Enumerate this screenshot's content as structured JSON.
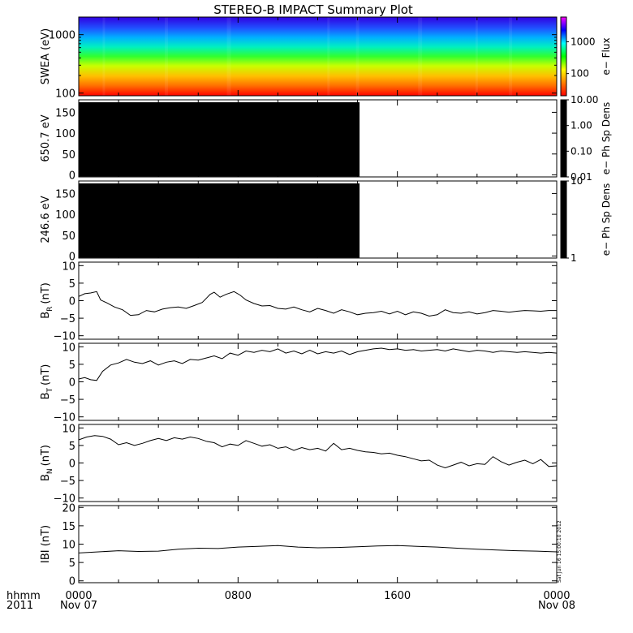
{
  "title": "STEREO-B IMPACT Summary Plot",
  "footer": {
    "hhmm_label": "hhmm",
    "year_label": "2011",
    "x_ticks": [
      {
        "hour": 0,
        "time": "0000",
        "date": "Nov 07"
      },
      {
        "hour": 8,
        "time": "0800",
        "date": ""
      },
      {
        "hour": 16,
        "time": "1600",
        "date": ""
      },
      {
        "hour": 24,
        "time": "0000",
        "date": "Nov 08"
      }
    ]
  },
  "timestamp": "Sat Jun 16 15:00:10 2012",
  "colors": {
    "colorbar_spectrum": [
      "#ff0000",
      "#ff8000",
      "#ffff00",
      "#00ff00",
      "#00ffff",
      "#0000ff",
      "#ff00ff"
    ],
    "black": "#000000"
  },
  "chart_data": [
    {
      "type": "heatmap",
      "name": "swea",
      "ylabel": "SWEA (eV)",
      "yscale": "log",
      "ylim": [
        90,
        2000
      ],
      "yticks": [
        {
          "v": 100,
          "label": "100"
        },
        {
          "v": 1000,
          "label": "1000"
        }
      ],
      "xlim": [
        0,
        24
      ],
      "colorbar": {
        "label": "e− Flux",
        "scale": "log",
        "ticks": [
          {
            "v": 100,
            "label": "100"
          },
          {
            "v": 1000,
            "label": "1000"
          }
        ],
        "range": [
          20,
          6000
        ]
      }
    },
    {
      "type": "heatmap",
      "name": "pad650",
      "ylabel": "650.7 eV",
      "ylim": [
        -5,
        180
      ],
      "yticks": [
        {
          "v": 0,
          "label": "0"
        },
        {
          "v": 50,
          "label": "50"
        },
        {
          "v": 100,
          "label": "100"
        },
        {
          "v": 150,
          "label": "150"
        }
      ],
      "xlim": [
        0,
        24
      ],
      "data_coverage_hours": [
        0,
        14.1
      ],
      "colorbar": {
        "label": "e− Ph Sp Dens",
        "scale": "log",
        "range": [
          0.01,
          10
        ],
        "ticks": [
          {
            "v": 0.01,
            "label": "0.01"
          },
          {
            "v": 0.1,
            "label": "0.10"
          },
          {
            "v": 1,
            "label": "1.00"
          },
          {
            "v": 10,
            "label": "10.00"
          }
        ]
      }
    },
    {
      "type": "heatmap",
      "name": "pad246",
      "ylabel": "246.6 eV",
      "ylim": [
        -5,
        180
      ],
      "yticks": [
        {
          "v": 0,
          "label": "0"
        },
        {
          "v": 50,
          "label": "50"
        },
        {
          "v": 100,
          "label": "100"
        },
        {
          "v": 150,
          "label": "150"
        }
      ],
      "xlim": [
        0,
        24
      ],
      "data_coverage_hours": [
        0,
        14.1
      ],
      "colorbar": {
        "label": "e− Ph Sp Dens",
        "scale": "log",
        "range": [
          1,
          10
        ],
        "ticks": [
          {
            "v": 1,
            "label": "1"
          },
          {
            "v": 10,
            "label": "10"
          }
        ]
      }
    },
    {
      "type": "line",
      "name": "br",
      "ylabel": "B",
      "ylabel_sub": "R",
      "ylabel_unit": "(nT)",
      "ylim": [
        -11,
        11
      ],
      "yticks": [
        {
          "v": -10,
          "label": "−10"
        },
        {
          "v": -5,
          "label": "−5"
        },
        {
          "v": 0,
          "label": "0"
        },
        {
          "v": 5,
          "label": "5"
        },
        {
          "v": 10,
          "label": "10"
        }
      ],
      "xlim": [
        0,
        24
      ],
      "x": [
        0,
        0.3,
        0.6,
        0.9,
        1.1,
        1.4,
        1.8,
        2.2,
        2.6,
        3.0,
        3.4,
        3.8,
        4.2,
        4.6,
        5.0,
        5.4,
        5.8,
        6.2,
        6.6,
        6.8,
        7.1,
        7.4,
        7.8,
        8.1,
        8.4,
        8.8,
        9.2,
        9.6,
        10.0,
        10.4,
        10.8,
        11.2,
        11.6,
        12.0,
        12.4,
        12.8,
        13.2,
        13.6,
        14.0,
        14.4,
        14.8,
        15.2,
        15.6,
        16.0,
        16.4,
        16.8,
        17.2,
        17.6,
        18.0,
        18.4,
        18.8,
        19.2,
        19.6,
        20.0,
        20.4,
        20.8,
        21.2,
        21.6,
        22.0,
        22.4,
        22.8,
        23.2,
        23.6,
        24.0
      ],
      "y": [
        1.2,
        2.0,
        2.2,
        2.6,
        0.2,
        -0.6,
        -1.8,
        -2.6,
        -4.2,
        -4.0,
        -2.8,
        -3.2,
        -2.4,
        -2.0,
        -1.8,
        -2.2,
        -1.4,
        -0.5,
        1.8,
        2.4,
        1.0,
        1.8,
        2.6,
        1.6,
        0.2,
        -0.8,
        -1.5,
        -1.4,
        -2.2,
        -2.4,
        -1.8,
        -2.6,
        -3.2,
        -2.2,
        -2.8,
        -3.6,
        -2.6,
        -3.2,
        -4.0,
        -3.6,
        -3.4,
        -3.0,
        -3.8,
        -3.0,
        -4.0,
        -3.2,
        -3.6,
        -4.4,
        -4.0,
        -2.6,
        -3.4,
        -3.6,
        -3.2,
        -3.8,
        -3.4,
        -2.8,
        -3.0,
        -3.3,
        -3.0,
        -2.8,
        -2.9,
        -3.0,
        -2.8,
        -2.8
      ]
    },
    {
      "type": "line",
      "name": "bt",
      "ylabel": "B",
      "ylabel_sub": "T",
      "ylabel_unit": "(nT)",
      "ylim": [
        -11,
        11
      ],
      "yticks": [
        {
          "v": -10,
          "label": "−10"
        },
        {
          "v": -5,
          "label": "−5"
        },
        {
          "v": 0,
          "label": "0"
        },
        {
          "v": 5,
          "label": "5"
        },
        {
          "v": 10,
          "label": "10"
        }
      ],
      "xlim": [
        0,
        24
      ],
      "x": [
        0,
        0.3,
        0.6,
        0.9,
        1.2,
        1.6,
        2.0,
        2.4,
        2.8,
        3.2,
        3.6,
        4.0,
        4.4,
        4.8,
        5.2,
        5.6,
        6.0,
        6.4,
        6.8,
        7.2,
        7.6,
        8.0,
        8.4,
        8.8,
        9.2,
        9.6,
        10.0,
        10.4,
        10.8,
        11.2,
        11.6,
        12.0,
        12.4,
        12.8,
        13.2,
        13.6,
        14.0,
        14.4,
        14.8,
        15.2,
        15.6,
        16.0,
        16.4,
        16.8,
        17.2,
        17.6,
        18.0,
        18.4,
        18.8,
        19.2,
        19.6,
        20.0,
        20.4,
        20.8,
        21.2,
        21.6,
        22.0,
        22.4,
        22.8,
        23.2,
        23.6,
        24.0
      ],
      "y": [
        0.8,
        1.2,
        0.6,
        0.4,
        3.0,
        4.8,
        5.4,
        6.4,
        5.6,
        5.2,
        6.0,
        4.8,
        5.6,
        6.0,
        5.2,
        6.4,
        6.2,
        6.8,
        7.4,
        6.6,
        8.2,
        7.6,
        8.8,
        8.4,
        9.0,
        8.6,
        9.4,
        8.2,
        8.8,
        8.0,
        9.0,
        8.0,
        8.6,
        8.2,
        8.8,
        7.8,
        8.6,
        9.0,
        9.4,
        9.6,
        9.2,
        9.4,
        9.0,
        9.2,
        8.8,
        9.0,
        9.2,
        8.8,
        9.4,
        9.0,
        8.6,
        9.0,
        8.8,
        8.4,
        8.8,
        8.6,
        8.4,
        8.6,
        8.4,
        8.2,
        8.4,
        8.2
      ]
    },
    {
      "type": "line",
      "name": "bn",
      "ylabel": "B",
      "ylabel_sub": "N",
      "ylabel_unit": "(nT)",
      "ylim": [
        -11,
        11
      ],
      "yticks": [
        {
          "v": -10,
          "label": "−10"
        },
        {
          "v": -5,
          "label": "−5"
        },
        {
          "v": 0,
          "label": "0"
        },
        {
          "v": 5,
          "label": "5"
        },
        {
          "v": 10,
          "label": "10"
        }
      ],
      "xlim": [
        0,
        24
      ],
      "x": [
        0,
        0.4,
        0.8,
        1.2,
        1.6,
        2.0,
        2.4,
        2.8,
        3.2,
        3.6,
        4.0,
        4.4,
        4.8,
        5.2,
        5.6,
        6.0,
        6.4,
        6.8,
        7.2,
        7.6,
        8.0,
        8.4,
        8.8,
        9.2,
        9.6,
        10.0,
        10.4,
        10.8,
        11.2,
        11.6,
        12.0,
        12.4,
        12.8,
        13.2,
        13.6,
        14.0,
        14.4,
        14.8,
        15.2,
        15.6,
        16.0,
        16.4,
        16.8,
        17.2,
        17.6,
        18.0,
        18.4,
        18.8,
        19.2,
        19.6,
        20.0,
        20.4,
        20.8,
        21.2,
        21.6,
        22.0,
        22.4,
        22.8,
        23.2,
        23.6,
        24.0
      ],
      "y": [
        6.6,
        7.4,
        7.8,
        7.6,
        6.8,
        5.2,
        5.8,
        5.0,
        5.6,
        6.4,
        7.0,
        6.4,
        7.2,
        6.8,
        7.4,
        7.0,
        6.2,
        5.8,
        4.6,
        5.4,
        5.0,
        6.4,
        5.6,
        4.8,
        5.2,
        4.2,
        4.6,
        3.6,
        4.4,
        3.8,
        4.2,
        3.4,
        5.6,
        3.8,
        4.2,
        3.6,
        3.2,
        3.0,
        2.6,
        2.8,
        2.2,
        1.8,
        1.2,
        0.6,
        0.8,
        -0.6,
        -1.4,
        -0.6,
        0.2,
        -0.8,
        -0.2,
        -0.4,
        1.8,
        0.4,
        -0.6,
        0.2,
        0.8,
        -0.2,
        1.0,
        -1.0,
        -0.8
      ]
    },
    {
      "type": "line",
      "name": "bmag",
      "ylabel": "IBI (nT)",
      "ylim": [
        -0.5,
        20.5
      ],
      "yticks": [
        {
          "v": 0,
          "label": "0"
        },
        {
          "v": 5,
          "label": "5"
        },
        {
          "v": 10,
          "label": "10"
        },
        {
          "v": 15,
          "label": "15"
        },
        {
          "v": 20,
          "label": "20"
        }
      ],
      "xlim": [
        0,
        24
      ],
      "x": [
        0,
        1,
        2,
        3,
        4,
        5,
        6,
        7,
        8,
        9,
        10,
        11,
        12,
        13,
        14,
        15,
        16,
        17,
        18,
        19,
        20,
        21,
        22,
        23,
        24
      ],
      "y": [
        7.6,
        7.9,
        8.2,
        8.0,
        8.1,
        8.6,
        8.9,
        8.8,
        9.2,
        9.4,
        9.6,
        9.2,
        9.0,
        9.1,
        9.3,
        9.5,
        9.6,
        9.4,
        9.2,
        8.9,
        8.6,
        8.4,
        8.2,
        8.1,
        7.9
      ]
    }
  ]
}
